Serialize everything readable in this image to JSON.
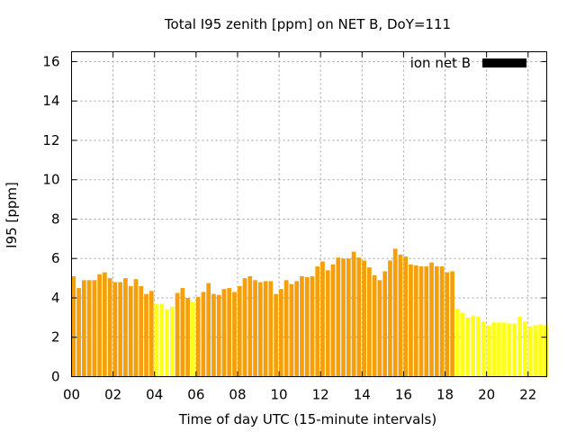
{
  "chart_data": {
    "type": "bar",
    "title": "Total I95 zenith [ppm] on NET B, DoY=111",
    "xlabel": "Time of day UTC (15-minute intervals)",
    "ylabel": "I95 [ppm]",
    "ylim": [
      0,
      16.5
    ],
    "yticks": [
      0,
      2,
      4,
      6,
      8,
      10,
      12,
      14,
      16
    ],
    "xlim": [
      0,
      22.9
    ],
    "xticks": [
      0,
      2,
      4,
      6,
      8,
      10,
      12,
      14,
      16,
      18,
      20,
      22
    ],
    "xtick_labels": [
      "00",
      "02",
      "04",
      "06",
      "08",
      "10",
      "12",
      "14",
      "16",
      "18",
      "20",
      "22"
    ],
    "grid": true,
    "legend": {
      "label": "ion net B",
      "color": "#000000",
      "placement": "top-right"
    },
    "bar_interval_hours": 0.25,
    "colors": {
      "orange": "#f5a00a",
      "yellow": "#ffff1a"
    },
    "x": [
      0.1,
      0.35,
      0.6,
      0.85,
      1.1,
      1.35,
      1.6,
      1.85,
      2.1,
      2.35,
      2.6,
      2.85,
      3.1,
      3.35,
      3.6,
      3.85,
      4.1,
      4.35,
      4.6,
      4.85,
      5.1,
      5.35,
      5.6,
      5.85,
      6.1,
      6.35,
      6.6,
      6.85,
      7.1,
      7.35,
      7.6,
      7.85,
      8.1,
      8.35,
      8.6,
      8.85,
      9.1,
      9.35,
      9.6,
      9.85,
      10.1,
      10.35,
      10.6,
      10.85,
      11.1,
      11.35,
      11.6,
      11.85,
      12.1,
      12.35,
      12.6,
      12.85,
      13.1,
      13.35,
      13.6,
      13.85,
      14.1,
      14.35,
      14.6,
      14.85,
      15.1,
      15.35,
      15.6,
      15.85,
      16.1,
      16.35,
      16.6,
      16.85,
      17.1,
      17.35,
      17.6,
      17.85,
      18.1,
      18.35,
      18.6,
      18.85,
      19.1,
      19.35,
      19.6,
      19.85,
      20.1,
      20.35,
      20.6,
      20.85,
      21.1,
      21.35,
      21.6,
      21.85,
      22.1,
      22.35,
      22.6,
      22.85
    ],
    "values": [
      5.1,
      4.5,
      4.9,
      4.9,
      4.9,
      5.2,
      5.3,
      5.0,
      4.8,
      4.8,
      5.0,
      4.6,
      4.95,
      4.6,
      4.2,
      4.35,
      3.7,
      3.7,
      3.4,
      3.55,
      4.25,
      4.5,
      4.0,
      3.8,
      4.05,
      4.3,
      4.75,
      4.2,
      4.15,
      4.45,
      4.5,
      4.3,
      4.6,
      5.0,
      5.1,
      4.9,
      4.8,
      4.85,
      4.85,
      4.2,
      4.45,
      4.9,
      4.7,
      4.85,
      5.1,
      5.05,
      5.1,
      5.6,
      5.85,
      5.4,
      5.7,
      6.05,
      6.0,
      6.0,
      6.35,
      6.05,
      5.9,
      5.55,
      5.15,
      4.9,
      5.35,
      5.9,
      6.5,
      6.2,
      6.1,
      5.7,
      5.65,
      5.6,
      5.6,
      5.8,
      5.6,
      5.6,
      5.3,
      5.35,
      3.45,
      3.25,
      3.0,
      3.1,
      3.05,
      2.8,
      2.6,
      2.75,
      2.75,
      2.75,
      2.7,
      2.7,
      3.05,
      2.8,
      2.55,
      2.6,
      2.65,
      2.6
    ],
    "bar_colors": [
      "orange",
      "orange",
      "orange",
      "orange",
      "orange",
      "orange",
      "orange",
      "orange",
      "orange",
      "orange",
      "orange",
      "orange",
      "orange",
      "orange",
      "orange",
      "orange",
      "yellow",
      "yellow",
      "yellow",
      "yellow",
      "orange",
      "orange",
      "orange",
      "yellow",
      "orange",
      "orange",
      "orange",
      "orange",
      "orange",
      "orange",
      "orange",
      "orange",
      "orange",
      "orange",
      "orange",
      "orange",
      "orange",
      "orange",
      "orange",
      "orange",
      "orange",
      "orange",
      "orange",
      "orange",
      "orange",
      "orange",
      "orange",
      "orange",
      "orange",
      "orange",
      "orange",
      "orange",
      "orange",
      "orange",
      "orange",
      "orange",
      "orange",
      "orange",
      "orange",
      "orange",
      "orange",
      "orange",
      "orange",
      "orange",
      "orange",
      "orange",
      "orange",
      "orange",
      "orange",
      "orange",
      "orange",
      "orange",
      "orange",
      "orange",
      "yellow",
      "yellow",
      "yellow",
      "yellow",
      "yellow",
      "yellow",
      "yellow",
      "yellow",
      "yellow",
      "yellow",
      "yellow",
      "yellow",
      "yellow",
      "yellow",
      "yellow",
      "yellow",
      "yellow",
      "yellow"
    ]
  }
}
